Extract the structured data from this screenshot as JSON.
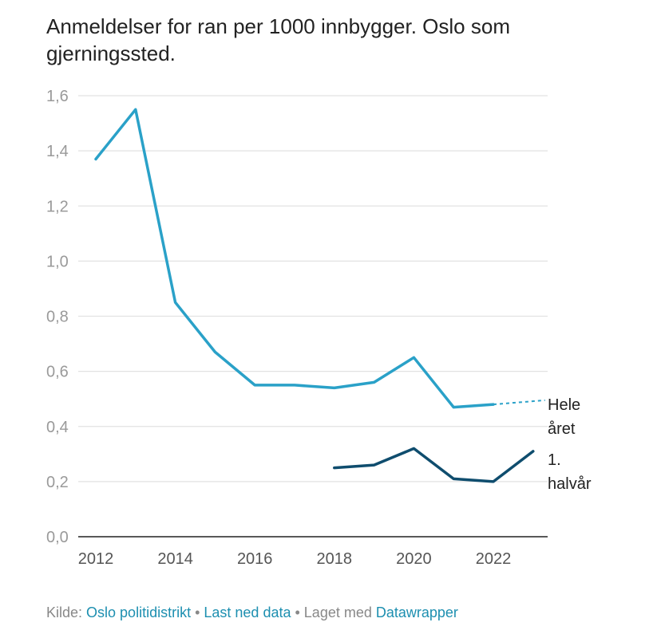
{
  "header": {
    "title": "Anmeldelser for ran per 1000 innbygger. Oslo som gjerningssted."
  },
  "chart_data": {
    "type": "line",
    "title": "Anmeldelser for ran per 1000 innbygger. Oslo som gjerningssted.",
    "xlim": [
      2012,
      2023
    ],
    "ylim": [
      0,
      1.6
    ],
    "x_ticks": [
      2012,
      2014,
      2016,
      2018,
      2020,
      2022
    ],
    "y_ticks": [
      "0,0",
      "0,2",
      "0,4",
      "0,6",
      "0,8",
      "1,0",
      "1,2",
      "1,4",
      "1,6"
    ],
    "y_tick_values": [
      0,
      0.2,
      0.4,
      0.6,
      0.8,
      1.0,
      1.2,
      1.4,
      1.6
    ],
    "grid": true,
    "series": [
      {
        "name": "Hele året",
        "name_lines": [
          "Hele",
          "året"
        ],
        "color": "#2aa1c8",
        "x": [
          2012,
          2013,
          2014,
          2015,
          2016,
          2017,
          2018,
          2019,
          2020,
          2021,
          2022
        ],
        "values": [
          1.37,
          1.55,
          0.85,
          0.67,
          0.55,
          0.55,
          0.54,
          0.56,
          0.65,
          0.47,
          0.48
        ],
        "projection": {
          "x": [
            2022,
            2023.3
          ],
          "values": [
            0.48,
            0.495
          ]
        }
      },
      {
        "name": "1. halvår",
        "name_lines": [
          "1.",
          "halvår"
        ],
        "color": "#0f4d6e",
        "x": [
          2018,
          2019,
          2020,
          2021,
          2022,
          2023
        ],
        "values": [
          0.25,
          0.26,
          0.32,
          0.21,
          0.2,
          0.31
        ]
      }
    ]
  },
  "footer": {
    "source_prefix": "Kilde: ",
    "source_link": "Oslo politidistrikt",
    "separator": " • ",
    "download_link": "Last ned data",
    "made_with_prefix": "Laget med ",
    "made_with_link": "Datawrapper"
  }
}
